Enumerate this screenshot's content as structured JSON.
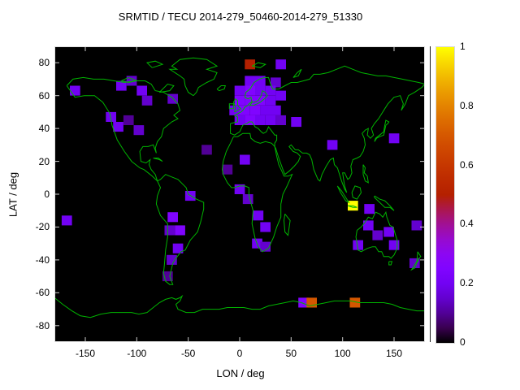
{
  "chart_data": {
    "type": "heatmap",
    "title": "SRMTID / TECU 2014-279_50460-2014-279_51330",
    "xlabel": "LON / deg",
    "ylabel": "LAT / deg",
    "xlim": [
      -180,
      180
    ],
    "ylim": [
      -90,
      90
    ],
    "xticks": [
      -150,
      -100,
      -50,
      0,
      50,
      100,
      150
    ],
    "yticks": [
      -80,
      -60,
      -40,
      -20,
      0,
      20,
      40,
      60,
      80
    ],
    "colorbar": {
      "min": 0,
      "max": 1,
      "ticks": [
        "0",
        "0.2",
        "0.4",
        "0.6",
        "0.8",
        "1"
      ],
      "tick_values": [
        0,
        0.2,
        0.4,
        0.6,
        0.8,
        1
      ],
      "palette": "pm3d black-purple-red-orange-yellow"
    },
    "background_color": "#000000",
    "coastline_color": "#00b400",
    "frame_color": "#e0e0e0",
    "cell_size_deg": [
      10,
      6
    ],
    "cells": [
      [
        10,
        79,
        0.5
      ],
      [
        40,
        79,
        0.2
      ],
      [
        -160,
        63,
        0.2
      ],
      [
        -115,
        66,
        0.2
      ],
      [
        -105,
        69,
        0.15
      ],
      [
        -95,
        63,
        0.2
      ],
      [
        -90,
        57,
        0.15
      ],
      [
        -65,
        58,
        0.15
      ],
      [
        10,
        69,
        0.2
      ],
      [
        20,
        69,
        0.2
      ],
      [
        35,
        68,
        0.15
      ],
      [
        0,
        63,
        0.2
      ],
      [
        10,
        63,
        0.25
      ],
      [
        20,
        63,
        0.2
      ],
      [
        30,
        63,
        0.2
      ],
      [
        0,
        57,
        0.25
      ],
      [
        10,
        57,
        0.25
      ],
      [
        20,
        57,
        0.25
      ],
      [
        30,
        57,
        0.2
      ],
      [
        40,
        60,
        0.2
      ],
      [
        -5,
        51,
        0.2
      ],
      [
        5,
        51,
        0.25
      ],
      [
        15,
        51,
        0.25
      ],
      [
        25,
        51,
        0.2
      ],
      [
        35,
        51,
        0.2
      ],
      [
        0,
        45,
        0.2
      ],
      [
        10,
        45,
        0.25
      ],
      [
        20,
        45,
        0.2
      ],
      [
        30,
        45,
        0.2
      ],
      [
        40,
        45,
        0.15
      ],
      [
        -125,
        47,
        0.2
      ],
      [
        -118,
        41,
        0.2
      ],
      [
        -108,
        45,
        0.1
      ],
      [
        -98,
        39,
        0.15
      ],
      [
        55,
        44,
        0.2
      ],
      [
        90,
        30,
        0.2
      ],
      [
        150,
        34,
        0.2
      ],
      [
        -32,
        27,
        0.1
      ],
      [
        5,
        21,
        0.2
      ],
      [
        -12,
        15,
        0.1
      ],
      [
        0,
        3,
        0.2
      ],
      [
        8,
        -3,
        0.15
      ],
      [
        -48,
        -1,
        0.2
      ],
      [
        110,
        -7,
        1.0
      ],
      [
        126,
        -9,
        0.2
      ],
      [
        -168,
        -16,
        0.2
      ],
      [
        -65,
        -14,
        0.25
      ],
      [
        -58,
        -22,
        0.25
      ],
      [
        -68,
        -22,
        0.15
      ],
      [
        18,
        -13,
        0.2
      ],
      [
        25,
        -20,
        0.2
      ],
      [
        17,
        -30,
        0.2
      ],
      [
        25,
        -32,
        0.15
      ],
      [
        -60,
        -33,
        0.2
      ],
      [
        -66,
        -40,
        0.15
      ],
      [
        -70,
        -50,
        0.1
      ],
      [
        115,
        -31,
        0.2
      ],
      [
        125,
        -19,
        0.2
      ],
      [
        134,
        -25,
        0.15
      ],
      [
        145,
        -23,
        0.2
      ],
      [
        150,
        -31,
        0.2
      ],
      [
        172,
        -19,
        0.15
      ],
      [
        170,
        -42,
        0.15
      ],
      [
        62,
        -66,
        0.25
      ],
      [
        70,
        -66,
        0.7
      ],
      [
        112,
        -66,
        0.7
      ]
    ]
  }
}
